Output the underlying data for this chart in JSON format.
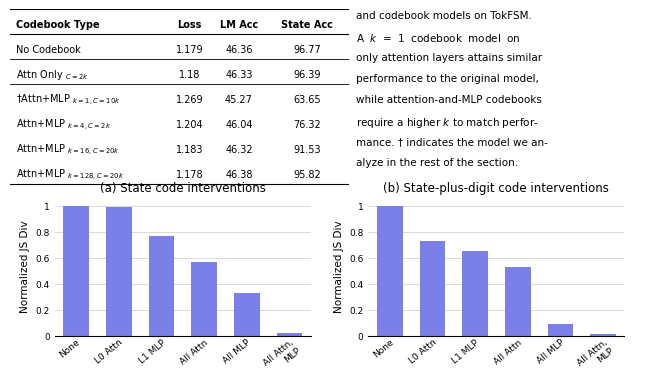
{
  "chart_a": {
    "categories": [
      "None",
      "L0 Attn",
      "L1 MLP",
      "All Attn",
      "All MLP",
      "All Attn,\nMLP"
    ],
    "values": [
      1.0,
      0.99,
      0.77,
      0.57,
      0.33,
      0.02
    ],
    "title": "(a) State code interventions",
    "ylabel": "Normalized JS Div",
    "bar_color": "#7B7FE8",
    "ylim": [
      0,
      1.08
    ]
  },
  "chart_b": {
    "categories": [
      "None",
      "L0 Attn",
      "L1 MLP",
      "All Attn",
      "All MLP",
      "All Attn,\nMLP"
    ],
    "values": [
      1.0,
      0.73,
      0.65,
      0.53,
      0.09,
      0.012
    ],
    "title": "(b) State-plus-digit code interventions",
    "ylabel": "Normalized JS Div",
    "bar_color": "#7B7FE8",
    "ylim": [
      0,
      1.08
    ]
  },
  "col_headers": [
    "Codebook Type",
    "Loss",
    "LM Acc",
    "State Acc"
  ],
  "rows": [
    [
      "No Codebook",
      "1.179",
      "46.36",
      "96.77"
    ],
    [
      "Attn Only $_{C=2k}$",
      "1.18",
      "46.33",
      "96.39"
    ],
    [
      "†Attn+MLP $_{k=1, C=10k}$",
      "1.269",
      "45.27",
      "63.65"
    ],
    [
      "Attn+MLP $_{k=4, C=2k}$",
      "1.204",
      "46.04",
      "76.32"
    ],
    [
      "Attn+MLP $_{k=16, C=20k}$",
      "1.183",
      "46.32",
      "91.53"
    ],
    [
      "Attn+MLP $_{k=128, C=20k}$",
      "1.178",
      "46.38",
      "95.82"
    ]
  ],
  "row_separators": [
    1,
    2
  ],
  "side_text_lines": [
    "and codebook models on TokFSM.",
    "A  $k$  =  1  codebook  model  on",
    "only attention layers attains similar",
    "performance to the original model,",
    "while attention-and-MLP codebooks",
    "require a higher $k$ to match perfor-",
    "mance. † indicates the model we an-",
    "alyze in the rest of the section."
  ],
  "background_color": "#ffffff",
  "tick_fontsize": 6.5,
  "label_fontsize": 7.5,
  "title_fontsize": 8.5,
  "table_fontsize": 7.0,
  "side_text_fontsize": 7.5
}
